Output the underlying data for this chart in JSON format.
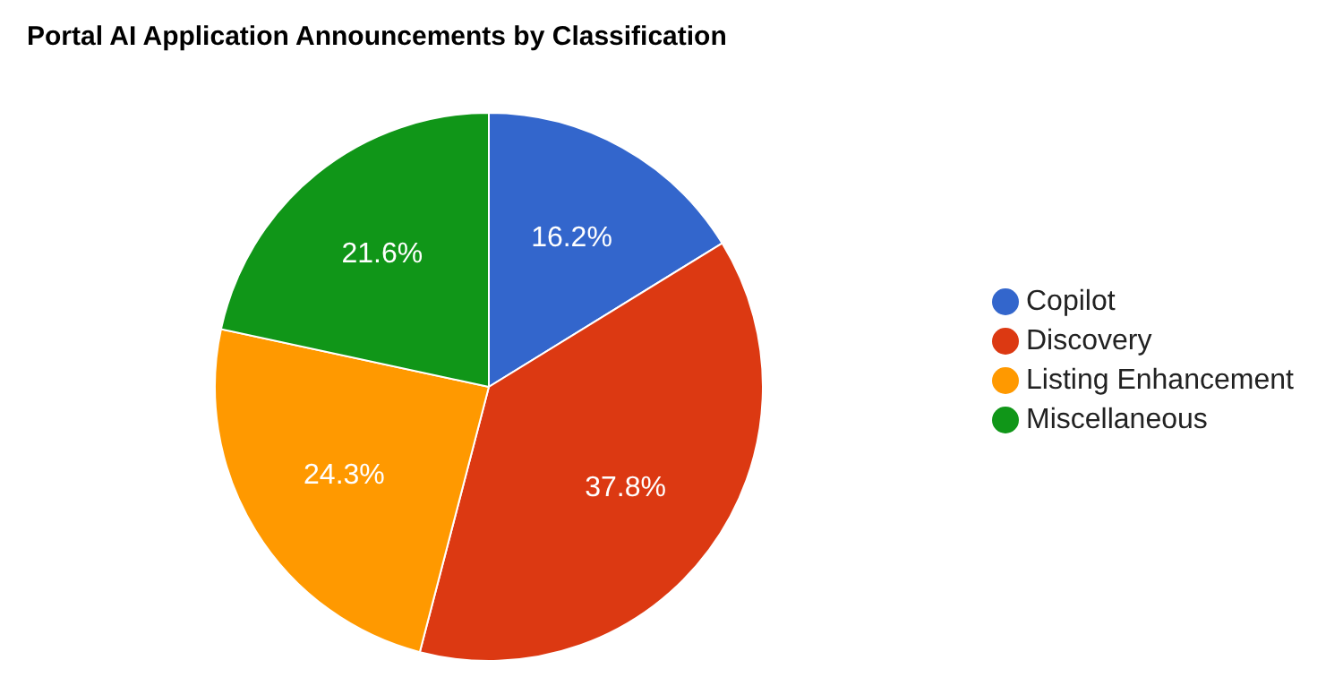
{
  "chart_data": {
    "type": "pie",
    "title": "Portal AI Application Announcements by Classification",
    "categories": [
      "Copilot",
      "Discovery",
      "Listing Enhancement",
      "Miscellaneous"
    ],
    "values": [
      16.2,
      37.8,
      24.3,
      21.6
    ],
    "value_labels": [
      "16.2%",
      "37.8%",
      "24.3%",
      "21.6%"
    ],
    "colors": [
      "#3366cc",
      "#dc3912",
      "#ff9900",
      "#109618"
    ],
    "legend": "right"
  }
}
